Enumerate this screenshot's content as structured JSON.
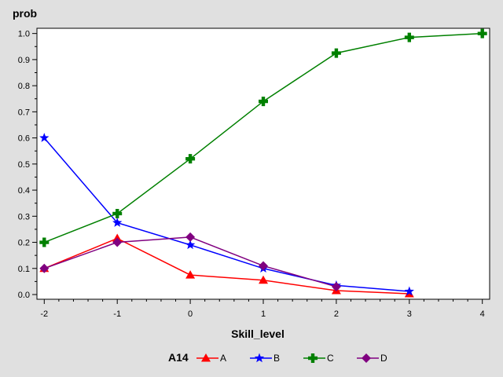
{
  "chart_data": {
    "type": "line",
    "ylabel": "prob",
    "xlabel": "Skill_level",
    "xlim": [
      -2,
      4
    ],
    "ylim": [
      0,
      1
    ],
    "x_ticks": [
      -2,
      -1,
      0,
      1,
      2,
      3,
      4
    ],
    "y_ticks": [
      "0.0",
      "0.1",
      "0.2",
      "0.3",
      "0.4",
      "0.5",
      "0.6",
      "0.7",
      "0.8",
      "0.9",
      "1.0"
    ],
    "grid": false,
    "legend": {
      "title": "A14",
      "placement": "bottom"
    },
    "series": [
      {
        "name": "A",
        "color": "#ff0000",
        "marker": "triangle",
        "x": [
          -2,
          -1,
          0,
          1,
          2,
          3
        ],
        "y": [
          0.1,
          0.215,
          0.075,
          0.055,
          0.015,
          0.003
        ]
      },
      {
        "name": "B",
        "color": "#0000ff",
        "marker": "star",
        "x": [
          -2,
          -1,
          0,
          1,
          2,
          3
        ],
        "y": [
          0.6,
          0.275,
          0.19,
          0.1,
          0.035,
          0.012
        ]
      },
      {
        "name": "C",
        "color": "#008000",
        "marker": "plus",
        "x": [
          -2,
          -1,
          0,
          1,
          2,
          3,
          4
        ],
        "y": [
          0.2,
          0.31,
          0.52,
          0.74,
          0.925,
          0.985,
          1.0
        ]
      },
      {
        "name": "D",
        "color": "#800080",
        "marker": "diamond",
        "x": [
          -2,
          -1,
          0,
          1,
          2
        ],
        "y": [
          0.1,
          0.2,
          0.22,
          0.11,
          0.03
        ]
      }
    ]
  }
}
